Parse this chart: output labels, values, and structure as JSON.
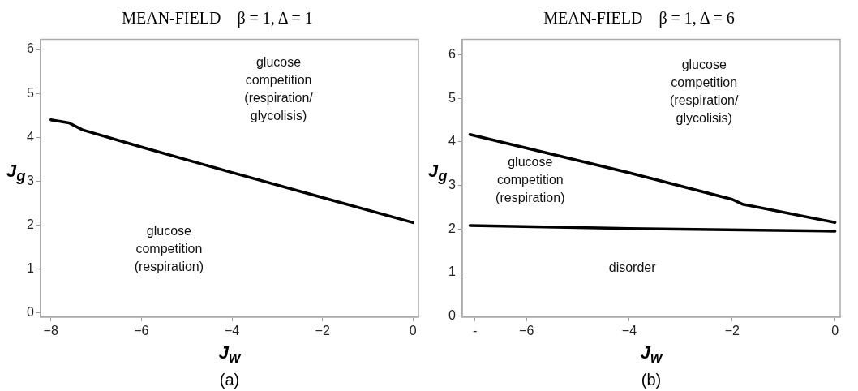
{
  "chart_data": [
    {
      "type": "line",
      "title": "MEAN-FIELD    β = 1, Δ = 1",
      "xlabel": "J$_{w}$",
      "ylabel": "J$_{g}$",
      "xlim": [
        -8.23,
        0.12
      ],
      "ylim": [
        -0.09,
        6.23
      ],
      "xticks": [
        -8,
        -6,
        -4,
        -2,
        0
      ],
      "yticks": [
        0,
        1,
        2,
        3,
        4,
        5,
        6
      ],
      "grid": false,
      "series": [
        {
          "color": "#000000",
          "x": [
            -8,
            -7.6,
            -7.3,
            -6,
            -4,
            -2,
            0
          ],
          "values": [
            4.4,
            4.33,
            4.17,
            3.78,
            3.2,
            2.63,
            2.06
          ]
        }
      ],
      "annotations": [
        "glucose\ncompetition\n(respiration/\nglycolisis)",
        "glucose\ncompetition\n(respiration)",
        "(a)"
      ]
    },
    {
      "type": "line",
      "title": "MEAN-FIELD    β = 1, Δ = 6",
      "xlabel": "J$_{w}$",
      "ylabel": "J$_{g}$",
      "xlim": [
        -7.25,
        0.1
      ],
      "ylim": [
        -0.02,
        6.35
      ],
      "xticks": [
        {
          "value": -7,
          "label": "-"
        },
        -6,
        -4,
        -2,
        0
      ],
      "yticks": [
        0,
        1,
        2,
        3,
        4,
        5,
        6
      ],
      "grid": false,
      "series": [
        {
          "color": "#000000",
          "x": [
            -7.1,
            -4,
            -2,
            -1.8,
            0
          ],
          "values": [
            4.17,
            3.29,
            2.68,
            2.57,
            2.15
          ]
        },
        {
          "color": "#000000",
          "x": [
            -7.1,
            -4,
            0
          ],
          "values": [
            2.08,
            2.01,
            1.95
          ]
        }
      ],
      "annotations": [
        "glucose\ncompetition\n(respiration/\nglycolisis)",
        "glucose\ncompetition\n(respiration)",
        "disorder",
        "(b)"
      ]
    }
  ]
}
